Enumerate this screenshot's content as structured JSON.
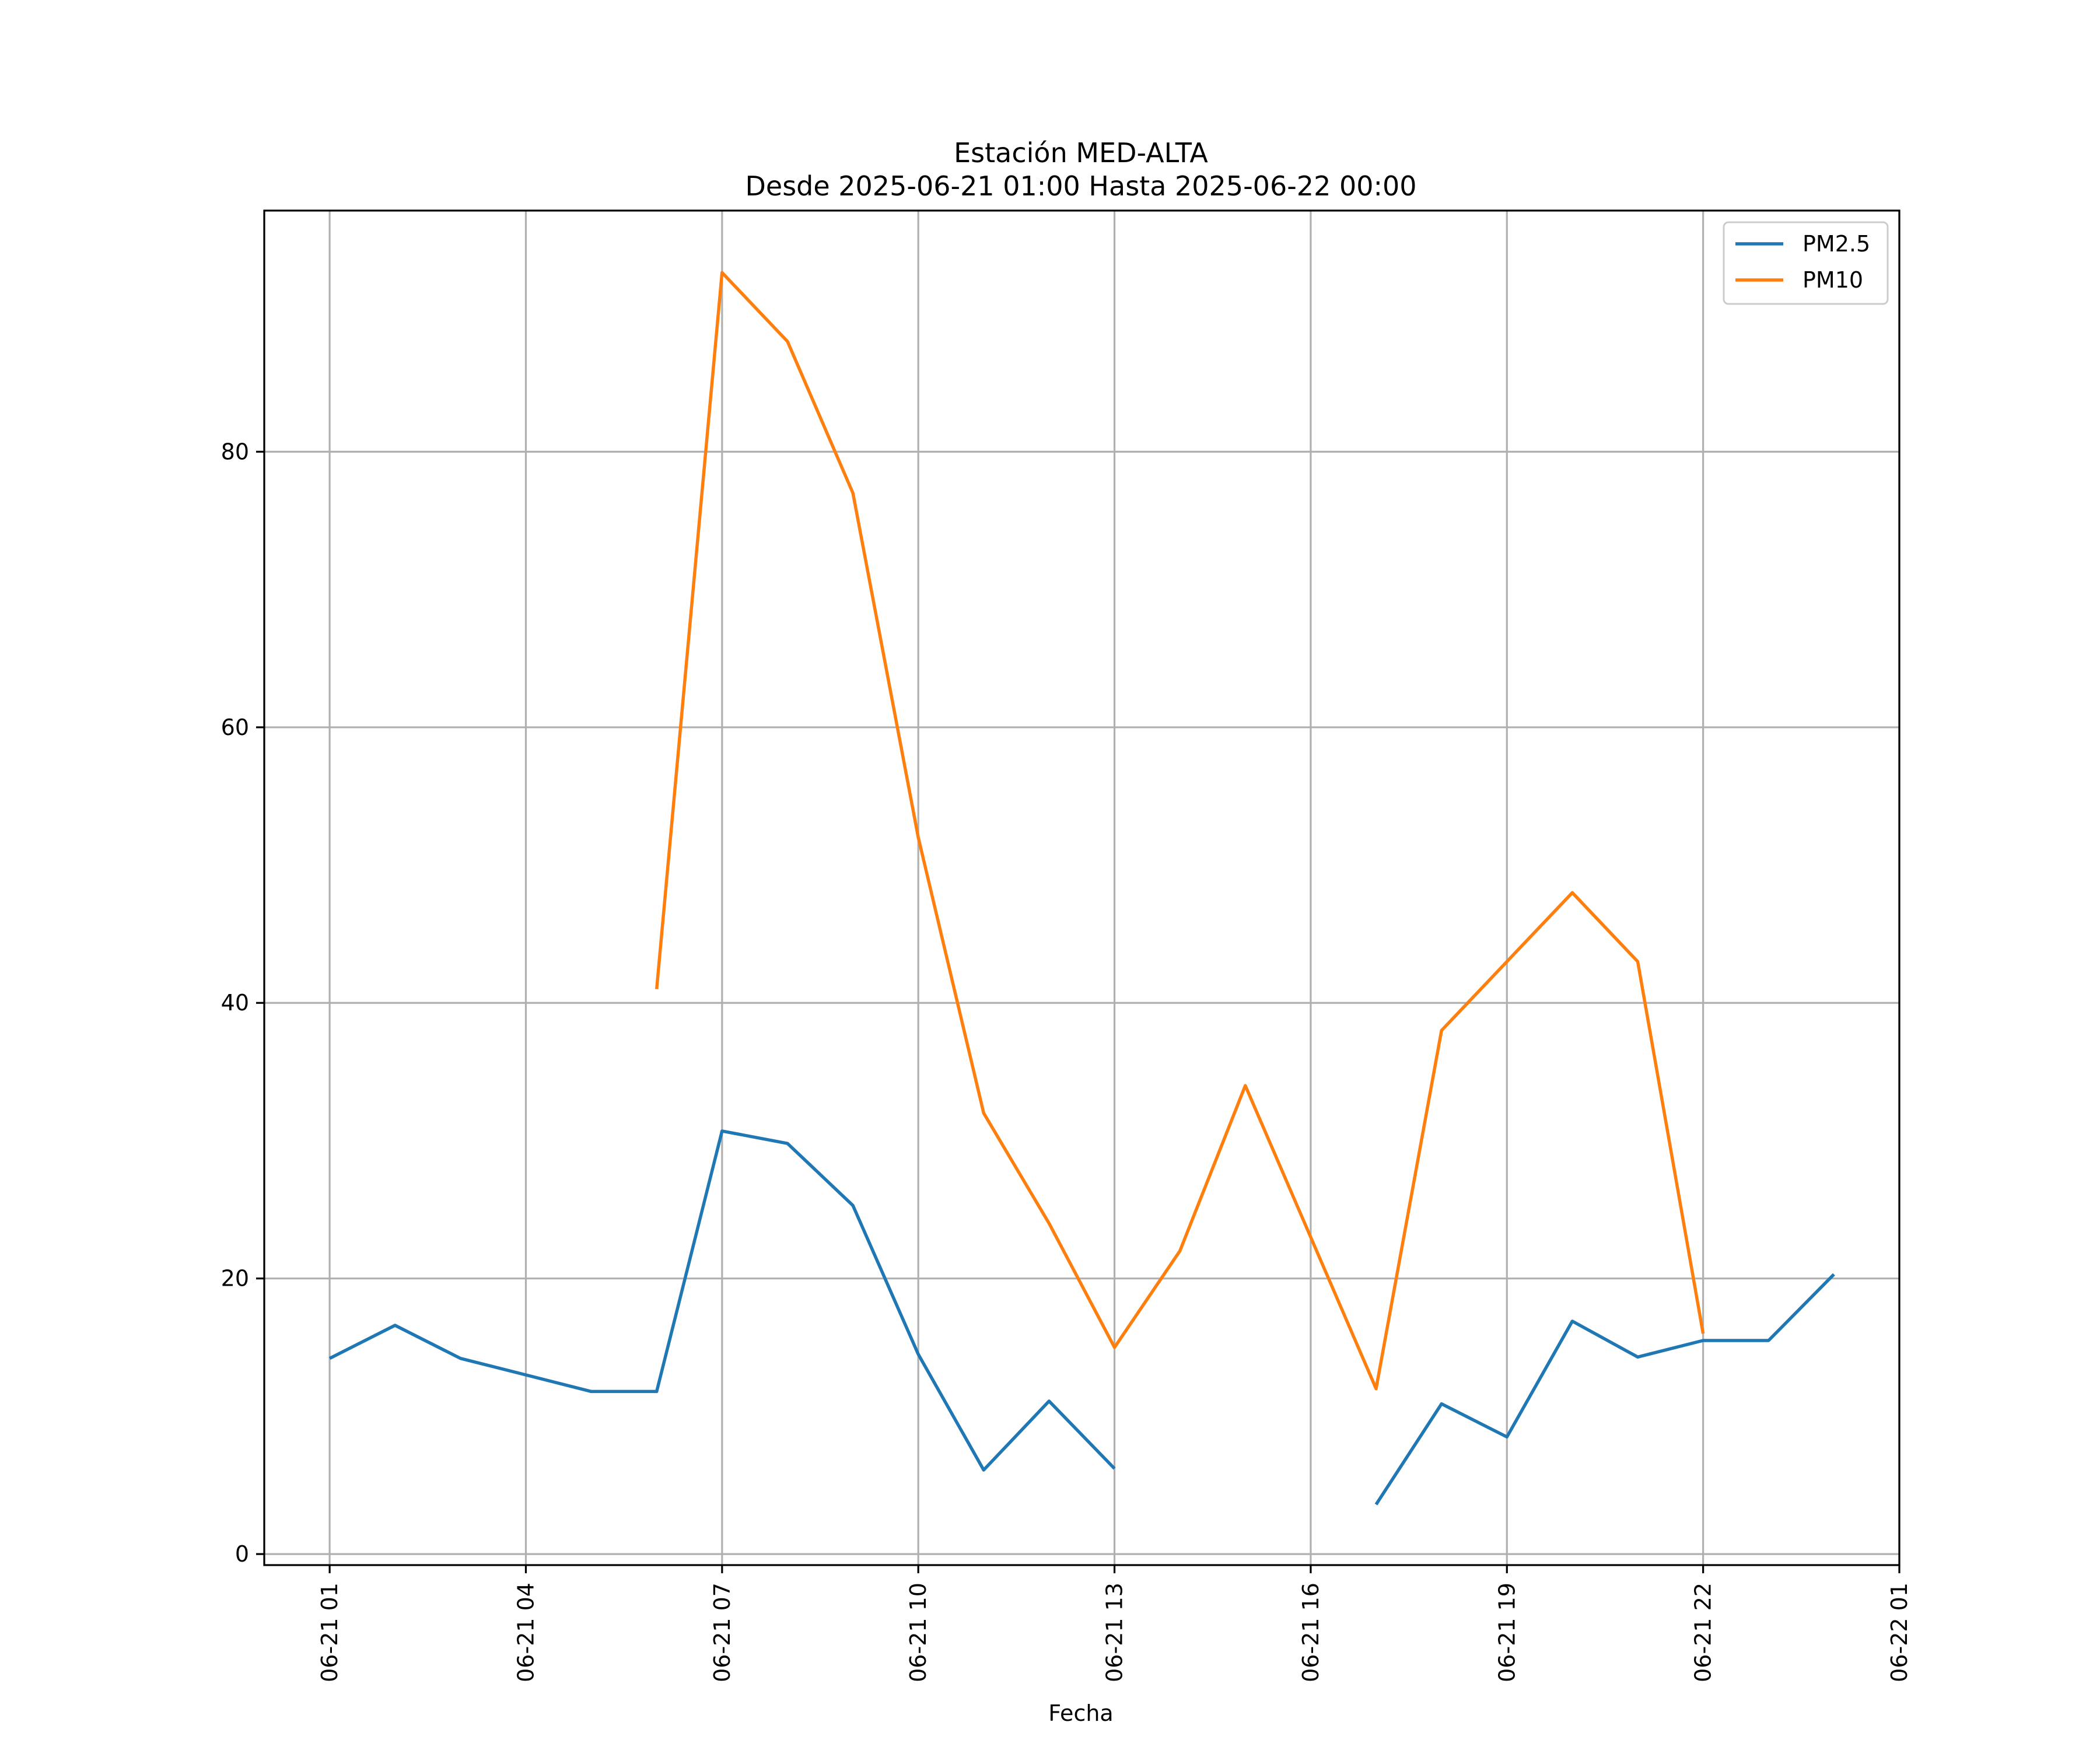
{
  "chart_data": {
    "type": "line",
    "title": "Estación MED-ALTA",
    "subtitle": "Desde 2025-06-21 01:00 Hasta 2025-06-22 00:00",
    "xlabel": "Fecha",
    "ylabel": "",
    "grid": true,
    "legend_placement": "top-right",
    "x": [
      "2025-06-21 01:00",
      "2025-06-21 02:00",
      "2025-06-21 03:00",
      "2025-06-21 04:00",
      "2025-06-21 05:00",
      "2025-06-21 06:00",
      "2025-06-21 07:00",
      "2025-06-21 08:00",
      "2025-06-21 09:00",
      "2025-06-21 10:00",
      "2025-06-21 11:00",
      "2025-06-21 12:00",
      "2025-06-21 13:00",
      "2025-06-21 14:00",
      "2025-06-21 15:00",
      "2025-06-21 16:00",
      "2025-06-21 17:00",
      "2025-06-21 18:00",
      "2025-06-21 19:00",
      "2025-06-21 20:00",
      "2025-06-21 21:00",
      "2025-06-21 22:00",
      "2025-06-21 23:00",
      "2025-06-22 00:00"
    ],
    "x_ticks": [
      {
        "value": "2025-06-21 01:00",
        "label": "06-21 01"
      },
      {
        "value": "2025-06-21 04:00",
        "label": "06-21 04"
      },
      {
        "value": "2025-06-21 07:00",
        "label": "06-21 07"
      },
      {
        "value": "2025-06-21 10:00",
        "label": "06-21 10"
      },
      {
        "value": "2025-06-21 13:00",
        "label": "06-21 13"
      },
      {
        "value": "2025-06-21 16:00",
        "label": "06-21 16"
      },
      {
        "value": "2025-06-21 19:00",
        "label": "06-21 19"
      },
      {
        "value": "2025-06-21 22:00",
        "label": "06-21 22"
      },
      {
        "value": "2025-06-22 01:00",
        "label": "06-22 01"
      }
    ],
    "xlim": [
      "2025-06-21 00:00",
      "2025-06-22 01:00"
    ],
    "y_ticks": [
      0,
      20,
      40,
      60,
      80
    ],
    "ylim": [
      -0.8,
      97.5
    ],
    "series": [
      {
        "name": "PM2.5",
        "color": "#1f77b4",
        "values": [
          14.2,
          16.6,
          14.2,
          13.0,
          11.8,
          11.8,
          30.7,
          29.8,
          25.3,
          14.5,
          6.1,
          11.1,
          6.2,
          null,
          null,
          null,
          3.6,
          10.9,
          8.5,
          16.9,
          14.3,
          15.5,
          15.5,
          20.3
        ]
      },
      {
        "name": "PM10",
        "color": "#ff7f0e",
        "values": [
          null,
          null,
          null,
          null,
          null,
          41,
          93,
          88,
          77,
          52,
          32,
          24,
          15,
          22,
          34,
          23,
          12,
          38,
          43,
          48,
          43,
          16,
          null,
          null
        ]
      }
    ]
  }
}
